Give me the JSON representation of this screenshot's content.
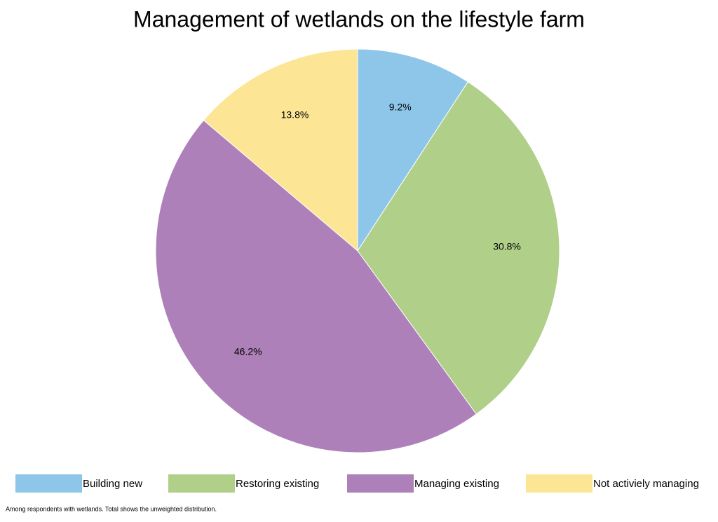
{
  "chart_data": {
    "type": "pie",
    "title": "Management of wetlands on the lifestyle farm",
    "categories": [
      "Building new",
      "Restoring existing",
      "Managing existing",
      "Not activiely managing"
    ],
    "values": [
      9.2,
      30.8,
      46.2,
      13.8
    ],
    "value_labels": [
      "9.2%",
      "30.8%",
      "46.2%",
      "13.8%"
    ],
    "colors": [
      "#8ec6ea",
      "#b0cf88",
      "#ae80b9",
      "#fde596"
    ],
    "legend": "bottom",
    "footnote": "Among respondents with wetlands. Total shows the unweighted distribution."
  }
}
